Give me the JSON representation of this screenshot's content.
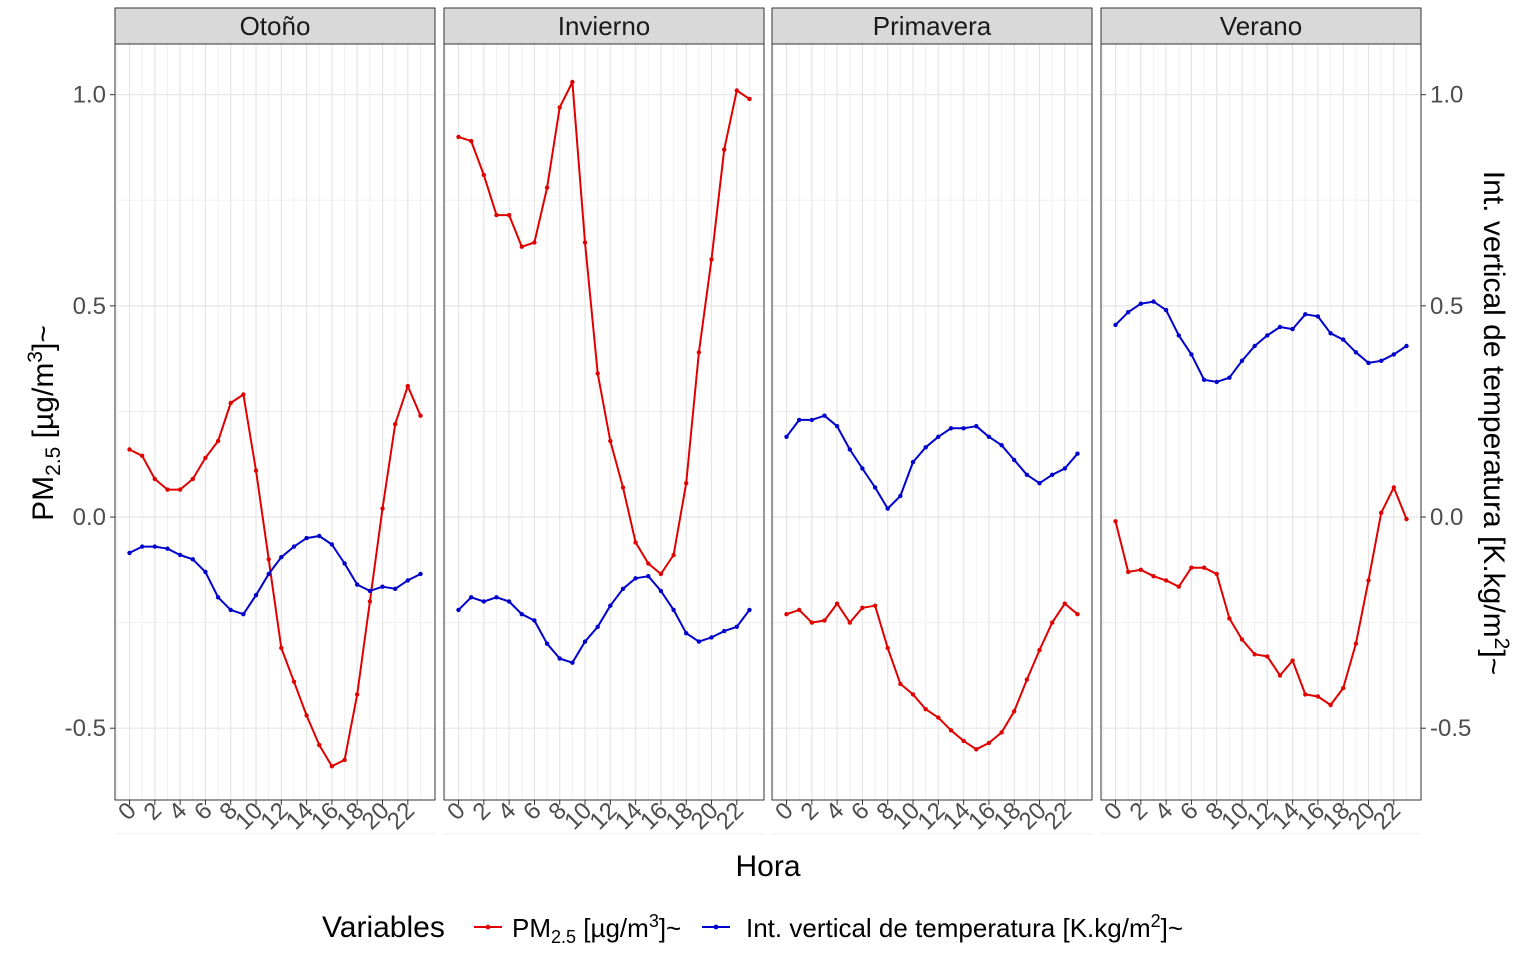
{
  "chart_data": {
    "type": "line",
    "facet_by": "season",
    "panels": [
      "Otoño",
      "Invierno",
      "Primavera",
      "Verano"
    ],
    "x": [
      0,
      1,
      2,
      3,
      4,
      5,
      6,
      7,
      8,
      9,
      10,
      11,
      12,
      13,
      14,
      15,
      16,
      17,
      18,
      19,
      20,
      21,
      22,
      23
    ],
    "x_ticks": [
      0,
      2,
      4,
      6,
      8,
      10,
      12,
      14,
      16,
      18,
      20,
      22
    ],
    "xlabel": "Hora",
    "ylabel": {
      "base": "PM",
      "sub": "2.5",
      "unit_pre": " [µg/m",
      "sup": "3",
      "unit_post": "]~"
    },
    "ylabel_right": {
      "text": "Int. vertical de temperatura [K.kg/m",
      "sup": "2",
      "post": "]~"
    },
    "y_ticks": [
      -0.5,
      0.0,
      0.5,
      1.0
    ],
    "y_tick_labels": [
      "-0.5",
      "0.0",
      "0.5",
      "1.0"
    ],
    "ylim": [
      -0.67,
      1.12
    ],
    "legend": {
      "title": "Variables",
      "position": "bottom",
      "entries": [
        {
          "base": "PM",
          "sub": "2.5",
          "unit_pre": " [µg/m",
          "sup": "3",
          "unit_post": "]~",
          "color": "#e00000"
        },
        {
          "text": "Int. vertical de temperatura  [K.kg/m",
          "sup": "2",
          "post": "]~",
          "color": "#0000cc"
        }
      ]
    },
    "colors": {
      "pm25": "#e00000",
      "temp": "#0000cc"
    },
    "grid": true,
    "series": {
      "Otoño": {
        "pm25": [
          0.16,
          0.145,
          0.09,
          0.065,
          0.065,
          0.09,
          0.14,
          0.18,
          0.27,
          0.29,
          0.11,
          -0.1,
          -0.31,
          -0.39,
          -0.47,
          -0.54,
          -0.59,
          -0.575,
          -0.42,
          -0.2,
          0.02,
          0.22,
          0.31,
          0.24
        ],
        "temp": [
          -0.085,
          -0.07,
          -0.07,
          -0.075,
          -0.09,
          -0.1,
          -0.13,
          -0.19,
          -0.22,
          -0.23,
          -0.185,
          -0.135,
          -0.095,
          -0.07,
          -0.05,
          -0.045,
          -0.065,
          -0.11,
          -0.16,
          -0.175,
          -0.165,
          -0.17,
          -0.15,
          -0.135
        ]
      },
      "Invierno": {
        "pm25": [
          0.9,
          0.89,
          0.81,
          0.715,
          0.715,
          0.64,
          0.65,
          0.78,
          0.97,
          1.03,
          0.65,
          0.34,
          0.18,
          0.07,
          -0.06,
          -0.11,
          -0.135,
          -0.09,
          0.08,
          0.39,
          0.61,
          0.87,
          1.01,
          0.99
        ],
        "temp": [
          -0.22,
          -0.19,
          -0.2,
          -0.19,
          -0.2,
          -0.23,
          -0.245,
          -0.3,
          -0.335,
          -0.345,
          -0.295,
          -0.26,
          -0.21,
          -0.17,
          -0.145,
          -0.14,
          -0.175,
          -0.22,
          -0.275,
          -0.295,
          -0.285,
          -0.27,
          -0.26,
          -0.22
        ]
      },
      "Primavera": {
        "pm25": [
          -0.23,
          -0.22,
          -0.25,
          -0.245,
          -0.205,
          -0.25,
          -0.215,
          -0.21,
          -0.31,
          -0.395,
          -0.42,
          -0.455,
          -0.475,
          -0.505,
          -0.53,
          -0.55,
          -0.535,
          -0.51,
          -0.46,
          -0.385,
          -0.315,
          -0.25,
          -0.205,
          -0.23
        ],
        "temp": [
          0.19,
          0.23,
          0.23,
          0.24,
          0.215,
          0.16,
          0.115,
          0.07,
          0.02,
          0.05,
          0.13,
          0.165,
          0.19,
          0.21,
          0.21,
          0.215,
          0.19,
          0.17,
          0.135,
          0.1,
          0.08,
          0.1,
          0.115,
          0.15
        ]
      },
      "Verano": {
        "pm25": [
          -0.01,
          -0.13,
          -0.125,
          -0.14,
          -0.15,
          -0.165,
          -0.12,
          -0.12,
          -0.135,
          -0.24,
          -0.29,
          -0.325,
          -0.33,
          -0.375,
          -0.34,
          -0.42,
          -0.425,
          -0.445,
          -0.405,
          -0.3,
          -0.15,
          0.01,
          0.07,
          -0.005
        ],
        "temp": [
          0.455,
          0.485,
          0.505,
          0.51,
          0.49,
          0.43,
          0.385,
          0.325,
          0.32,
          0.33,
          0.37,
          0.405,
          0.43,
          0.45,
          0.445,
          0.48,
          0.475,
          0.435,
          0.42,
          0.39,
          0.365,
          0.37,
          0.385,
          0.405
        ]
      }
    }
  }
}
